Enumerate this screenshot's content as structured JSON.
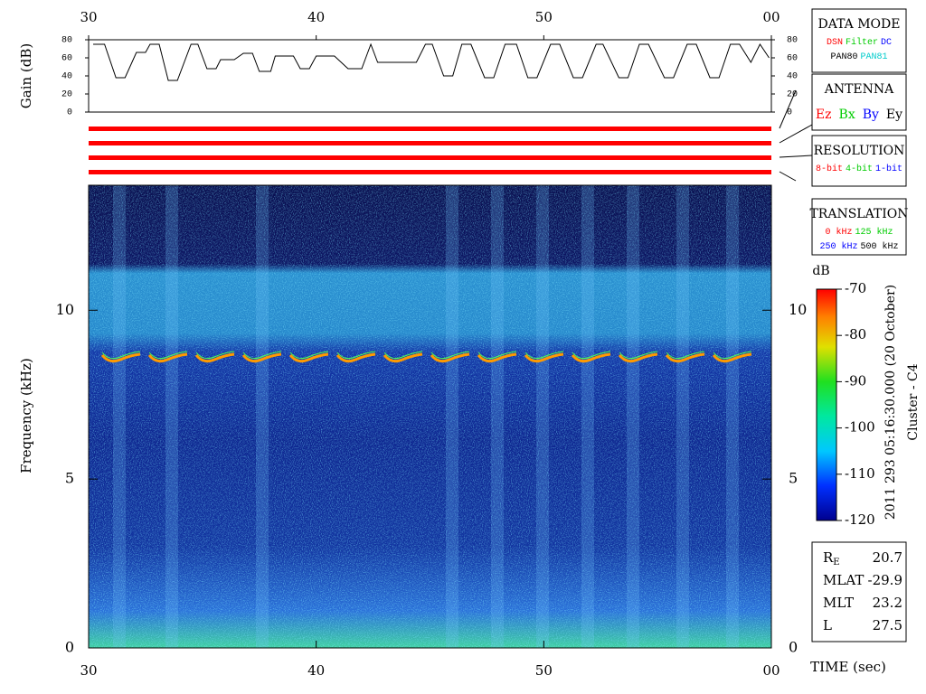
{
  "chart_data": [
    {
      "type": "line",
      "ylabel": "Gain (dB)",
      "xlim": [
        30,
        60
      ],
      "xticks": [
        30,
        40,
        50,
        {
          "value": 60,
          "label": "00"
        }
      ],
      "ylim": [
        0,
        80
      ],
      "yticks": [
        0,
        20,
        40,
        60,
        80
      ],
      "x": [
        30.2,
        30.7,
        31.2,
        31.6,
        32.1,
        32.5,
        32.7,
        33.1,
        33.5,
        33.9,
        34.5,
        34.8,
        35.2,
        35.6,
        35.8,
        36.4,
        36.8,
        37.2,
        37.5,
        38.0,
        38.2,
        39.0,
        39.3,
        39.7,
        40.0,
        40.8,
        41.4,
        42.0,
        42.4,
        42.7,
        44.4,
        44.8,
        45.1,
        45.6,
        46.0,
        46.4,
        46.8,
        47.4,
        47.8,
        48.3,
        48.8,
        49.3,
        49.7,
        50.3,
        50.7,
        51.3,
        51.7,
        52.3,
        52.6,
        53.3,
        53.7,
        54.2,
        54.6,
        55.3,
        55.7,
        56.3,
        56.7,
        57.3,
        57.7,
        58.2,
        58.6,
        59.1,
        59.5,
        59.9
      ],
      "series": [
        {
          "color": "#000000",
          "values": [
            75,
            75,
            38,
            38,
            66,
            66,
            75,
            75,
            35,
            35,
            75,
            75,
            48,
            48,
            58,
            58,
            65,
            65,
            45,
            45,
            62,
            62,
            48,
            48,
            62,
            62,
            48,
            48,
            75,
            55,
            55,
            75,
            75,
            40,
            40,
            75,
            75,
            38,
            38,
            75,
            75,
            38,
            38,
            75,
            75,
            38,
            38,
            75,
            75,
            38,
            38,
            75,
            75,
            38,
            38,
            75,
            75,
            38,
            38,
            75,
            75,
            55,
            75,
            60
          ]
        }
      ]
    },
    {
      "type": "heatmap",
      "ylabel": "Frequency (kHz)",
      "xlabel": "TIME (sec)",
      "xlim": [
        30,
        60
      ],
      "xticks": [
        30,
        40,
        50,
        {
          "value": 60,
          "label": "00"
        }
      ],
      "ylim": [
        0,
        13.7
      ],
      "yticks": [
        0,
        5,
        10
      ],
      "colorbar": {
        "label": "dB",
        "lim": [
          -120,
          -70
        ],
        "ticks": [
          -120,
          -110,
          -100,
          -90,
          -80,
          -70
        ]
      },
      "annotations": [
        "2011 293 05:16:30.000 (20 October)",
        "Cluster - C4"
      ]
    }
  ],
  "status_panels": [
    {
      "title": "DATA MODE",
      "rows": [
        [
          {
            "text": "DSN",
            "color": "#ff0000"
          },
          {
            "text": "Filter",
            "color": "#00cc00"
          },
          {
            "text": "DC",
            "color": "#0000ff"
          }
        ],
        [
          {
            "text": "PAN80",
            "color": "#000000"
          },
          {
            "text": "PAN81",
            "color": "#00cccc"
          }
        ]
      ]
    },
    {
      "title": "ANTENNA",
      "rows": [
        [
          {
            "text": "Ez",
            "color": "#ff0000"
          },
          {
            "text": "Bx",
            "color": "#00cc00"
          },
          {
            "text": "By",
            "color": "#0000ff"
          },
          {
            "text": "Ey",
            "color": "#000000"
          }
        ]
      ]
    },
    {
      "title": "RESOLUTION",
      "rows": [
        [
          {
            "text": "8-bit",
            "color": "#ff0000"
          },
          {
            "text": "4-bit",
            "color": "#00cc00"
          },
          {
            "text": "1-bit",
            "color": "#0000ff"
          }
        ]
      ]
    },
    {
      "title": "TRANSLATION",
      "rows": [
        [
          {
            "text": "0 kHz",
            "color": "#ff0000"
          },
          {
            "text": "125 kHz",
            "color": "#00cc00"
          }
        ],
        [
          {
            "text": "250 kHz",
            "color": "#0000ff"
          },
          {
            "text": "500 kHz",
            "color": "#000000"
          }
        ]
      ]
    }
  ],
  "ephemeris": [
    {
      "label": "R",
      "subscript": "E",
      "value": 20.7
    },
    {
      "label": "MLAT",
      "value": -29.9
    },
    {
      "label": "MLT",
      "value": 23.2
    },
    {
      "label": "L",
      "value": 27.5
    }
  ]
}
